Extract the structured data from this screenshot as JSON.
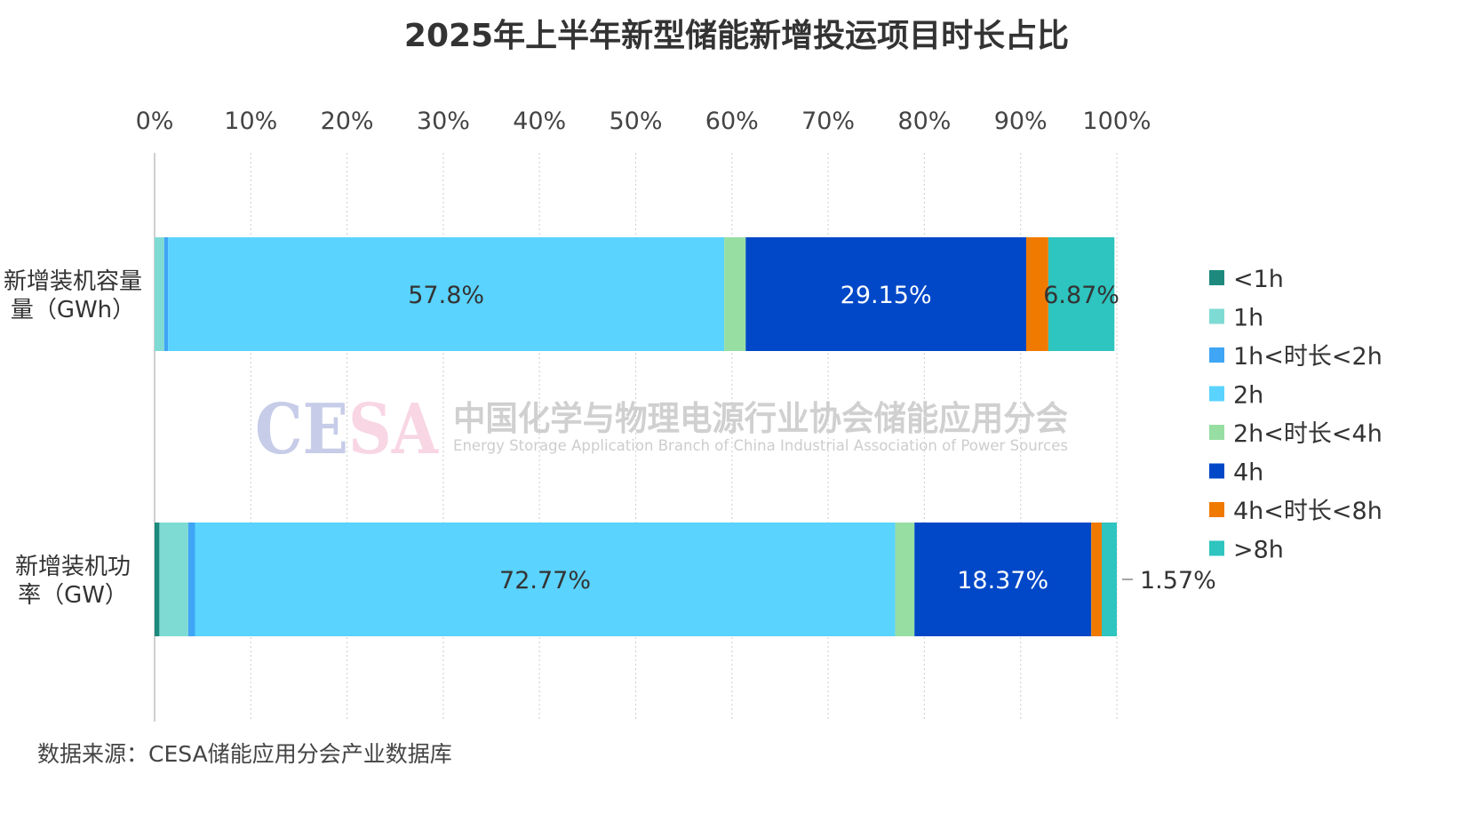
{
  "chart_data": {
    "type": "bar",
    "orientation": "horizontal",
    "stacked": "percent",
    "title": "2025年上半年新型储能新增投运项目时长占比",
    "categories": [
      "新增装机容量（GWh）",
      "新增装机功率（GW）"
    ],
    "category_lines": [
      [
        "新增装机容量",
        "量（GWh）"
      ],
      [
        "新增装机功",
        "率（GW）"
      ]
    ],
    "xticks": [
      "0%",
      "10%",
      "20%",
      "30%",
      "40%",
      "50%",
      "60%",
      "70%",
      "80%",
      "90%",
      "100%"
    ],
    "xlim": [
      0,
      100
    ],
    "grid": true,
    "legend_position": "right",
    "series": [
      {
        "name": "<1h",
        "color": "#1e8a7e",
        "values": [
          0.0,
          0.5
        ]
      },
      {
        "name": "1h",
        "color": "#7edbd3",
        "values": [
          1.0,
          3.0
        ]
      },
      {
        "name": "1h<时长<2h",
        "color": "#3fa5f5",
        "values": [
          0.4,
          0.7
        ]
      },
      {
        "name": "2h",
        "color": "#5ad3ff",
        "values": [
          57.8,
          72.77
        ]
      },
      {
        "name": "2h<时长<4h",
        "color": "#97dea3",
        "values": [
          2.23,
          2.0
        ]
      },
      {
        "name": "4h",
        "color": "#0048c8",
        "values": [
          29.15,
          18.37
        ]
      },
      {
        "name": "4h<时长<8h",
        "color": "#f07a00",
        "values": [
          2.3,
          1.09
        ]
      },
      {
        "name": ">8h",
        "color": "#2ec4bf",
        "values": [
          6.87,
          1.57
        ]
      }
    ],
    "data_labels": [
      {
        "category": 0,
        "series": "2h",
        "text": "57.8%",
        "color": "#333333"
      },
      {
        "category": 0,
        "series": "4h",
        "text": "29.15%",
        "color": "#ffffff"
      },
      {
        "category": 0,
        "series": ">8h",
        "text": "6.87%",
        "color": "#333333"
      },
      {
        "category": 1,
        "series": "2h",
        "text": "72.77%",
        "color": "#333333"
      },
      {
        "category": 1,
        "series": "4h",
        "text": "18.37%",
        "color": "#ffffff"
      },
      {
        "category": 1,
        "series": ">8h",
        "text": "1.57%",
        "color": "#333333",
        "callout": true
      }
    ]
  },
  "watermark": {
    "logo": "CESA",
    "cn": "中国化学与物理电源行业协会储能应用分会",
    "en": "Energy Storage Application Branch of China Industrial Association of Power Sources"
  },
  "source_note": "数据来源：CESA储能应用分会产业数据库"
}
